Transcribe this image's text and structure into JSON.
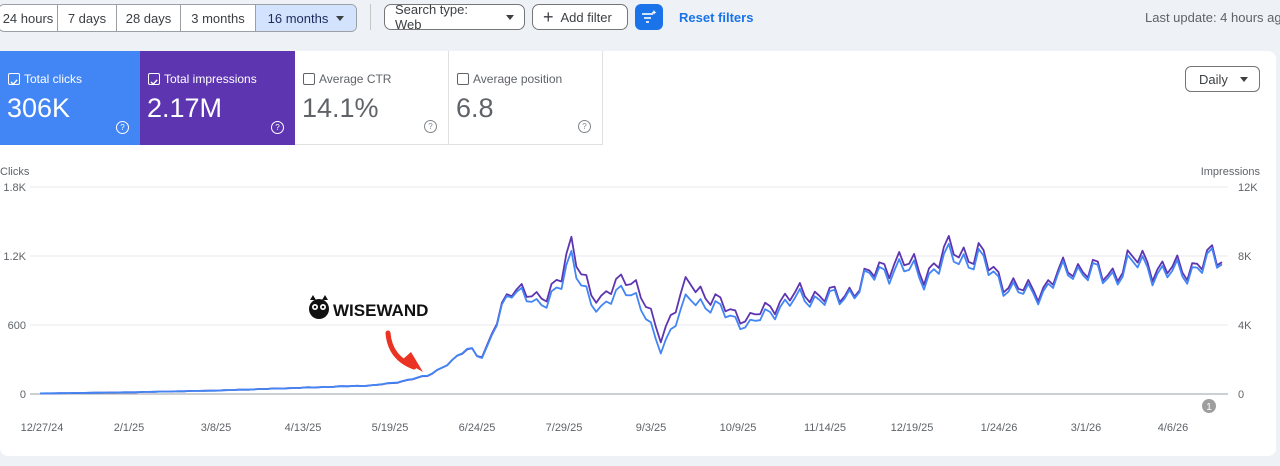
{
  "toolbar": {
    "date_ranges": [
      "24 hours",
      "7 days",
      "28 days",
      "3 months",
      "16 months"
    ],
    "active_range": "16 months",
    "search_type": "Search type: Web",
    "add_filter": "Add filter",
    "reset_filters": "Reset filters",
    "last_update": "Last update: 4 hours ag"
  },
  "metrics": {
    "clicks": {
      "label": "Total clicks",
      "value": "306K",
      "checked": true
    },
    "impressions": {
      "label": "Total impressions",
      "value": "2.17M",
      "checked": true
    },
    "ctr": {
      "label": "Average CTR",
      "value": "14.1%",
      "checked": false
    },
    "position": {
      "label": "Average position",
      "value": "6.8",
      "checked": false
    }
  },
  "granularity": "Daily",
  "annotation": {
    "logo_text": "WISEWAND",
    "marker": "1"
  },
  "colors": {
    "clicks": "#4285f4",
    "impressions": "#5e35b1",
    "arrow": "#ea3323"
  },
  "chart_data": {
    "type": "line",
    "left_axis": {
      "label": "Clicks",
      "ticks": [
        "0",
        "600",
        "1.2K",
        "1.8K"
      ],
      "range": [
        0,
        1800
      ]
    },
    "right_axis": {
      "label": "Impressions",
      "ticks": [
        "0",
        "4K",
        "8K",
        "12K"
      ],
      "range": [
        0,
        12000
      ]
    },
    "x_ticks": [
      "12/27/24",
      "2/1/25",
      "3/8/25",
      "4/13/25",
      "5/19/25",
      "6/24/25",
      "7/29/25",
      "9/3/25",
      "10/9/25",
      "11/14/25",
      "12/19/25",
      "1/24/26",
      "3/1/26",
      "4/6/26"
    ],
    "x_range": [
      "2024-12-27",
      "2026-04-17"
    ],
    "grid": true,
    "series": [
      {
        "name": "Total clicks",
        "axis": "left",
        "anchors": [
          [
            "2024-12-27",
            5
          ],
          [
            "2025-02-01",
            15
          ],
          [
            "2025-03-08",
            30
          ],
          [
            "2025-04-13",
            55
          ],
          [
            "2025-05-10",
            75
          ],
          [
            "2025-05-19",
            100
          ],
          [
            "2025-06-01",
            160
          ],
          [
            "2025-06-10",
            270
          ],
          [
            "2025-06-18",
            410
          ],
          [
            "2025-06-24",
            320
          ],
          [
            "2025-07-05",
            960
          ],
          [
            "2025-07-15",
            740
          ],
          [
            "2025-07-25",
            980
          ],
          [
            "2025-07-29",
            1120
          ],
          [
            "2025-08-10",
            700
          ],
          [
            "2025-08-20",
            980
          ],
          [
            "2025-09-03",
            400
          ],
          [
            "2025-09-15",
            850
          ],
          [
            "2025-09-25",
            740
          ],
          [
            "2025-10-09",
            590
          ],
          [
            "2025-10-20",
            760
          ],
          [
            "2025-11-01",
            840
          ],
          [
            "2025-11-14",
            820
          ],
          [
            "2025-11-25",
            990
          ],
          [
            "2025-12-05",
            1110
          ],
          [
            "2025-12-19",
            1020
          ],
          [
            "2025-12-30",
            1210
          ],
          [
            "2026-01-10",
            1140
          ],
          [
            "2026-01-24",
            870
          ],
          [
            "2026-02-05",
            900
          ],
          [
            "2026-02-15",
            1100
          ],
          [
            "2026-03-01",
            1010
          ],
          [
            "2026-03-15",
            1140
          ],
          [
            "2026-03-25",
            1030
          ],
          [
            "2026-04-06",
            1090
          ],
          [
            "2026-04-17",
            1180
          ]
        ]
      },
      {
        "name": "Total impressions",
        "axis": "right",
        "anchors": [
          [
            "2024-12-27",
            30
          ],
          [
            "2025-02-01",
            100
          ],
          [
            "2025-03-08",
            200
          ],
          [
            "2025-04-13",
            370
          ],
          [
            "2025-05-10",
            500
          ],
          [
            "2025-05-19",
            650
          ],
          [
            "2025-06-01",
            1050
          ],
          [
            "2025-06-10",
            1800
          ],
          [
            "2025-06-18",
            2700
          ],
          [
            "2025-06-24",
            2200
          ],
          [
            "2025-07-05",
            6500
          ],
          [
            "2025-07-15",
            5300
          ],
          [
            "2025-07-25",
            7000
          ],
          [
            "2025-07-29",
            8200
          ],
          [
            "2025-08-10",
            5200
          ],
          [
            "2025-08-20",
            7200
          ],
          [
            "2025-09-03",
            3400
          ],
          [
            "2025-09-15",
            6600
          ],
          [
            "2025-09-25",
            5300
          ],
          [
            "2025-10-09",
            4300
          ],
          [
            "2025-10-20",
            5400
          ],
          [
            "2025-11-01",
            5900
          ],
          [
            "2025-11-14",
            5600
          ],
          [
            "2025-11-25",
            6700
          ],
          [
            "2025-12-05",
            7800
          ],
          [
            "2025-12-19",
            7100
          ],
          [
            "2025-12-30",
            8500
          ],
          [
            "2026-01-10",
            7900
          ],
          [
            "2026-01-24",
            6000
          ],
          [
            "2026-02-05",
            6200
          ],
          [
            "2026-02-15",
            7500
          ],
          [
            "2026-03-01",
            6900
          ],
          [
            "2026-03-15",
            7900
          ],
          [
            "2026-03-25",
            7100
          ],
          [
            "2026-04-06",
            7500
          ],
          [
            "2026-04-17",
            8000
          ]
        ]
      }
    ]
  }
}
